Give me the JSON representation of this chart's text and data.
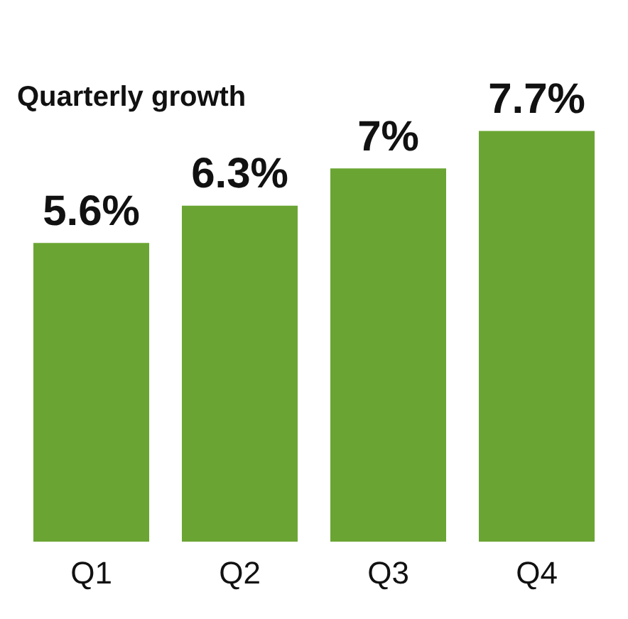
{
  "chart_data": {
    "type": "bar",
    "title": "Quarterly growth",
    "categories": [
      "Q1",
      "Q2",
      "Q3",
      "Q4"
    ],
    "values": [
      5.6,
      6.3,
      7,
      7.7
    ],
    "value_labels": [
      "5.6%",
      "6.3%",
      "7%",
      "7.7%"
    ],
    "color": "#6aa533",
    "grid": false,
    "legend": false,
    "tick_labels": "x"
  }
}
